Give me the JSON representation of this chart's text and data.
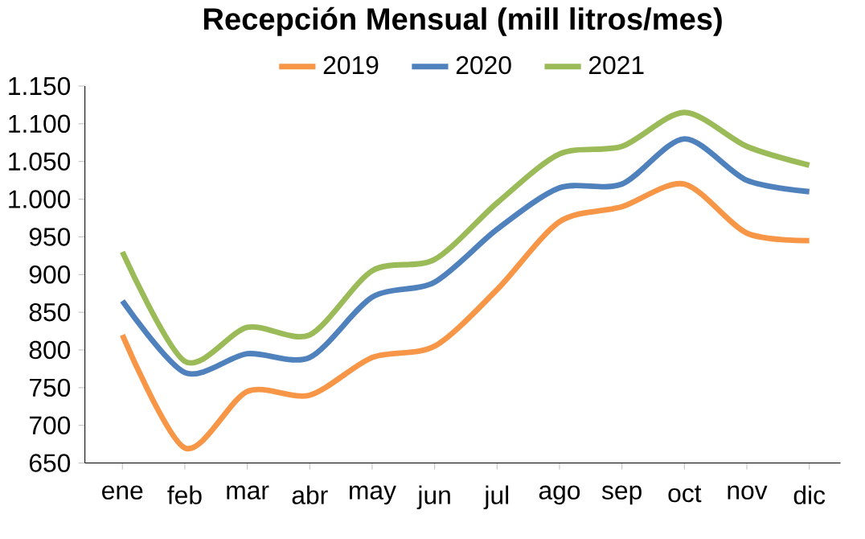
{
  "chart_data": {
    "type": "line",
    "title": "Recepción Mensual (mill litros/mes)",
    "categories": [
      "ene",
      "feb",
      "mar",
      "abr",
      "may",
      "jun",
      "jul",
      "ago",
      "sep",
      "oct",
      "nov",
      "dic"
    ],
    "series": [
      {
        "name": "2019",
        "color": "#f79646",
        "values": [
          820,
          670,
          745,
          740,
          790,
          805,
          880,
          970,
          990,
          1020,
          955,
          945
        ]
      },
      {
        "name": "2020",
        "color": "#4f81bd",
        "values": [
          865,
          770,
          795,
          790,
          870,
          890,
          960,
          1015,
          1020,
          1080,
          1025,
          1010
        ]
      },
      {
        "name": "2021",
        "color": "#9bbb59",
        "values": [
          930,
          785,
          830,
          820,
          905,
          920,
          995,
          1060,
          1070,
          1115,
          1070,
          1045
        ]
      }
    ],
    "ylim": [
      650,
      1150
    ],
    "yticks": [
      650,
      700,
      750,
      800,
      850,
      900,
      950,
      {
        "value": 1000,
        "label": "1.000"
      },
      {
        "value": 1050,
        "label": "1.050"
      },
      {
        "value": 1100,
        "label": "1.100"
      },
      {
        "value": 1150,
        "label": "1.150"
      }
    ],
    "legend": "top",
    "grid": false,
    "marker": "none",
    "line_style": "solid"
  }
}
